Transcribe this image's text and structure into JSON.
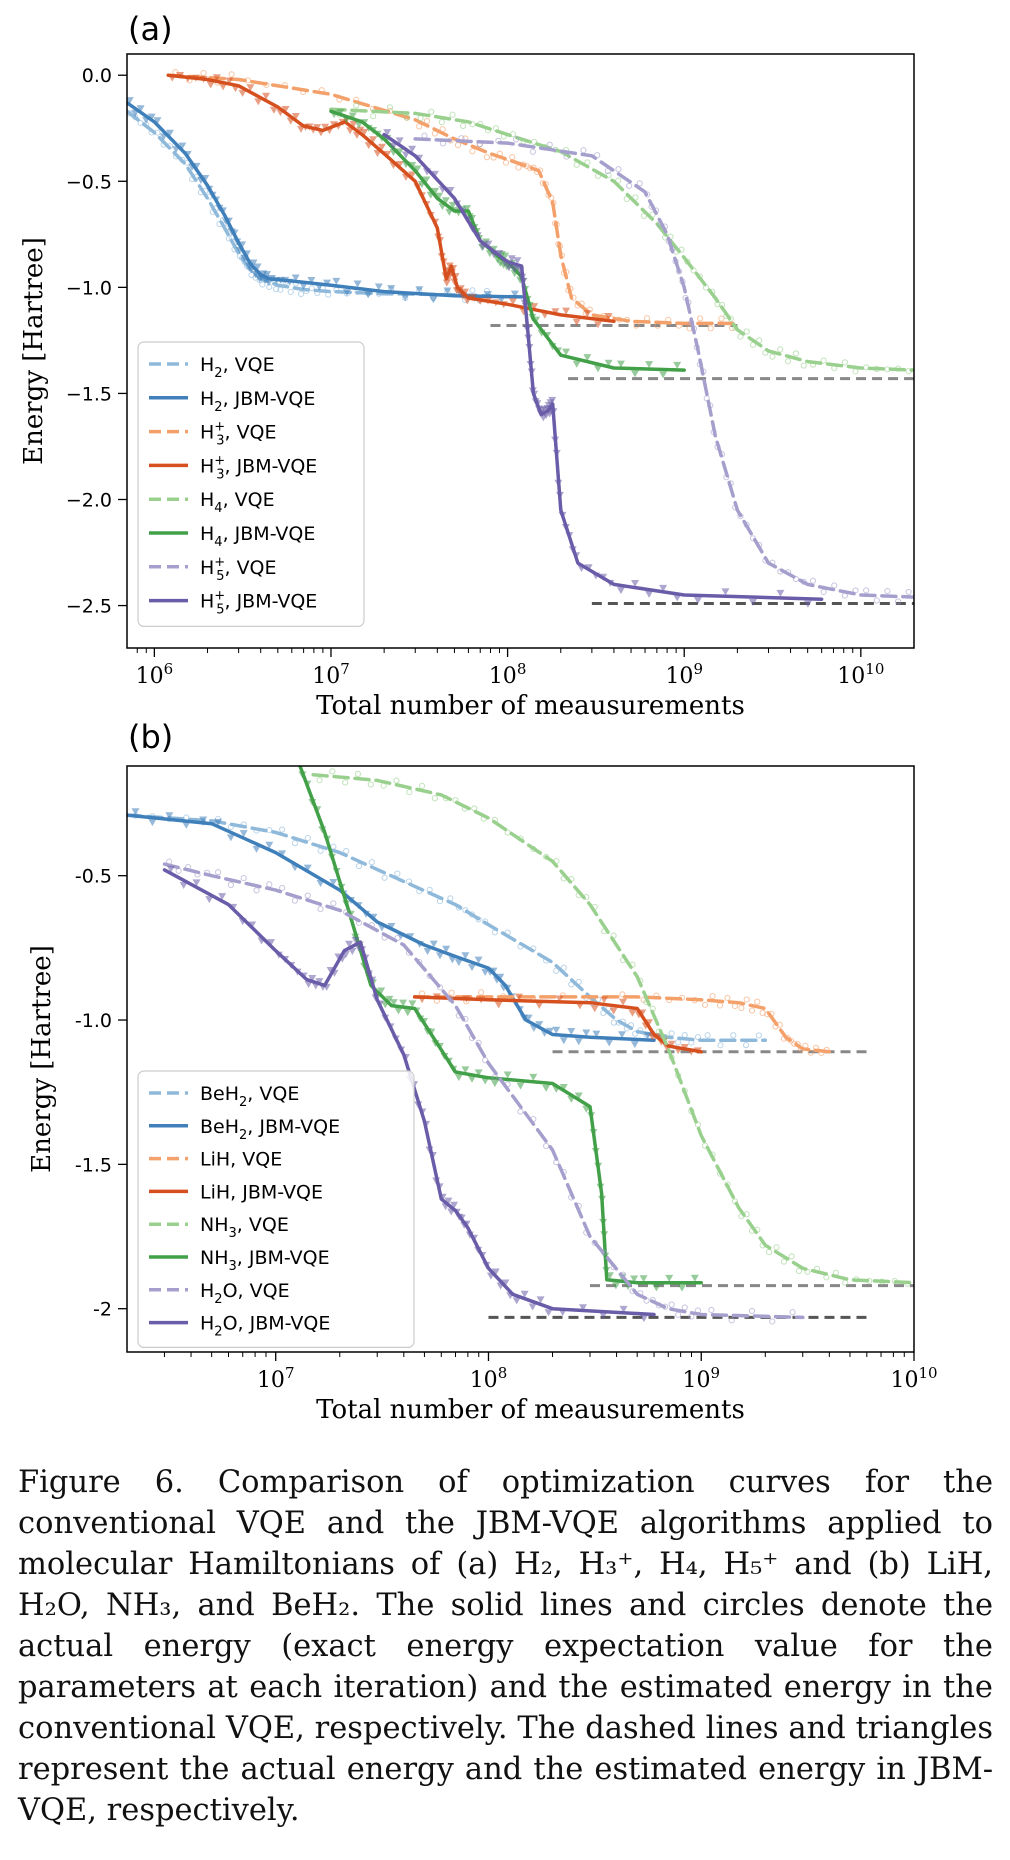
{
  "figure_label": "Figure 6.",
  "caption": "Comparison of optimization curves for the conventional VQE and the JBM-VQE algorithms applied to molecular Hamiltonians of (a) H₂, H₃⁺, H₄, H₅⁺ and (b) LiH, H₂O, NH₃, and BeH₂. The solid lines and circles denote the actual energy (exact energy expectation value for the parameters at each iteration) and the estimated energy in the conventional VQE, respectively. The dashed lines and triangles represent the actual energy and the estimated energy in JBM-VQE, respectively.",
  "colors": {
    "blue": "#3f7fba",
    "light_blue": "#8fb9da",
    "orange": "#d6501f",
    "light_orange": "#f4a06a",
    "green": "#41a048",
    "light_green": "#99d08e",
    "purple": "#6a5ca8",
    "light_purple": "#a49fcc",
    "ref_gray": "#888888",
    "ref_dark": "#555555"
  },
  "chart_data": [
    {
      "panel": "(a)",
      "type": "line",
      "xscale": "log",
      "xlabel": "Total number of meausurements",
      "ylabel": "Energy [Hartree]",
      "xlim": [
        700000,
        20000000000
      ],
      "ylim": [
        -2.7,
        0.1
      ],
      "xticks": [
        {
          "v": 1000000,
          "base": "10",
          "exp": "6"
        },
        {
          "v": 10000000,
          "base": "10",
          "exp": "7"
        },
        {
          "v": 100000000,
          "base": "10",
          "exp": "8"
        },
        {
          "v": 1000000000,
          "base": "10",
          "exp": "9"
        },
        {
          "v": 10000000000,
          "base": "10",
          "exp": "10"
        }
      ],
      "yticks": [
        {
          "v": 0,
          "label": "0.0"
        },
        {
          "v": -0.5,
          "label": "−0.5"
        },
        {
          "v": -1.0,
          "label": "−1.0"
        },
        {
          "v": -1.5,
          "label": "−1.5"
        },
        {
          "v": -2.0,
          "label": "−2.0"
        },
        {
          "v": -2.5,
          "label": "−2.5"
        }
      ],
      "legend": [
        {
          "mol": "H",
          "sub": "2",
          "sup": "",
          "method": ", VQE",
          "color": "light_blue",
          "dash": true
        },
        {
          "mol": "H",
          "sub": "2",
          "sup": "",
          "method": ", JBM-VQE",
          "color": "blue",
          "dash": false
        },
        {
          "mol": "H",
          "sub": "3",
          "sup": "+",
          "method": ", VQE",
          "color": "light_orange",
          "dash": true
        },
        {
          "mol": "H",
          "sub": "3",
          "sup": "+",
          "method": ", JBM-VQE",
          "color": "orange",
          "dash": false
        },
        {
          "mol": "H",
          "sub": "4",
          "sup": "",
          "method": ", VQE",
          "color": "light_green",
          "dash": true
        },
        {
          "mol": "H",
          "sub": "4",
          "sup": "",
          "method": ", JBM-VQE",
          "color": "green",
          "dash": false
        },
        {
          "mol": "H",
          "sub": "5",
          "sup": "+",
          "method": ", VQE",
          "color": "light_purple",
          "dash": true
        },
        {
          "mol": "H",
          "sub": "5",
          "sup": "+",
          "method": ", JBM-VQE",
          "color": "purple",
          "dash": false
        }
      ],
      "reference_lines": [
        {
          "name": "H3+ ground",
          "y": -1.18,
          "x": [
            80000000,
            2000000000
          ],
          "color": "ref_gray"
        },
        {
          "name": "H4 ground",
          "y": -1.43,
          "x": [
            220000000,
            20000000000
          ],
          "color": "ref_gray"
        },
        {
          "name": "H5+ ground",
          "y": -2.49,
          "x": [
            300000000,
            20000000000
          ],
          "color": "ref_dark"
        }
      ],
      "series": [
        {
          "name": "H2, VQE",
          "color": "light_blue",
          "dash": true,
          "marker": "o",
          "x": [
            700000,
            1000000,
            1500000,
            2000000,
            2500000,
            3000000,
            3500000,
            4000000,
            5000000,
            7000000,
            10000000,
            20000000,
            50000000,
            80000000
          ],
          "y": [
            -0.17,
            -0.27,
            -0.42,
            -0.58,
            -0.72,
            -0.84,
            -0.92,
            -0.96,
            -0.99,
            -1.01,
            -1.02,
            -1.03,
            -1.035,
            -1.04
          ]
        },
        {
          "name": "H2, JBM-VQE",
          "color": "blue",
          "dash": false,
          "marker": "v",
          "x": [
            700000,
            1000000,
            1500000,
            2000000,
            2500000,
            3000000,
            3500000,
            4000000,
            4500000,
            6000000,
            10000000,
            20000000,
            50000000,
            120000000
          ],
          "y": [
            -0.13,
            -0.22,
            -0.37,
            -0.52,
            -0.66,
            -0.79,
            -0.89,
            -0.94,
            -0.96,
            -0.97,
            -0.99,
            -1.02,
            -1.04,
            -1.045
          ]
        },
        {
          "name": "H3+, VQE",
          "color": "light_orange",
          "dash": true,
          "marker": "o",
          "x": [
            1200000,
            3000000,
            10000000,
            30000000,
            50000000,
            80000000,
            120000000,
            150000000,
            180000000,
            200000000,
            230000000,
            300000000,
            500000000,
            1000000000,
            2000000000
          ],
          "y": [
            0,
            -0.02,
            -0.09,
            -0.21,
            -0.3,
            -0.37,
            -0.42,
            -0.45,
            -0.6,
            -0.85,
            -1.05,
            -1.13,
            -1.16,
            -1.17,
            -1.17
          ]
        },
        {
          "name": "H3+, JBM-VQE",
          "color": "orange",
          "dash": false,
          "marker": "v",
          "x": [
            1200000,
            2000000,
            3000000,
            5000000,
            7000000,
            9000000,
            12000000,
            15000000,
            20000000,
            30000000,
            40000000,
            45000000,
            48000000,
            52000000,
            60000000,
            100000000,
            200000000,
            400000000
          ],
          "y": [
            0,
            -0.02,
            -0.05,
            -0.15,
            -0.24,
            -0.26,
            -0.22,
            -0.28,
            -0.37,
            -0.5,
            -0.72,
            -0.96,
            -0.9,
            -1.0,
            -1.05,
            -1.08,
            -1.13,
            -1.16
          ]
        },
        {
          "name": "H4, VQE",
          "color": "light_green",
          "dash": true,
          "marker": "o",
          "x": [
            10000000,
            30000000,
            60000000,
            100000000,
            200000000,
            400000000,
            700000000,
            1000000000,
            1500000000,
            2000000000,
            3000000000,
            5000000000,
            10000000000,
            20000000000
          ],
          "y": [
            -0.16,
            -0.18,
            -0.22,
            -0.28,
            -0.36,
            -0.5,
            -0.7,
            -0.86,
            -1.05,
            -1.2,
            -1.3,
            -1.35,
            -1.38,
            -1.39
          ]
        },
        {
          "name": "H4, JBM-VQE",
          "color": "green",
          "dash": false,
          "marker": "v",
          "x": [
            10000000,
            15000000,
            20000000,
            30000000,
            40000000,
            50000000,
            60000000,
            70000000,
            90000000,
            100000000,
            120000000,
            140000000,
            200000000,
            400000000,
            1000000000
          ],
          "y": [
            -0.17,
            -0.22,
            -0.3,
            -0.45,
            -0.58,
            -0.64,
            -0.64,
            -0.78,
            -0.86,
            -0.88,
            -0.95,
            -1.15,
            -1.32,
            -1.38,
            -1.39
          ]
        },
        {
          "name": "H5+, VQE",
          "color": "light_purple",
          "dash": true,
          "marker": "o",
          "x": [
            30000000,
            100000000,
            300000000,
            600000000,
            800000000,
            1000000000,
            1200000000,
            1500000000,
            2000000000,
            3000000000,
            5000000000,
            10000000000,
            20000000000
          ],
          "y": [
            -0.3,
            -0.32,
            -0.38,
            -0.55,
            -0.75,
            -1.0,
            -1.3,
            -1.7,
            -2.05,
            -2.3,
            -2.4,
            -2.45,
            -2.46
          ]
        },
        {
          "name": "H5+, JBM-VQE",
          "color": "purple",
          "dash": false,
          "marker": "v",
          "x": [
            20000000,
            30000000,
            50000000,
            70000000,
            100000000,
            120000000,
            130000000,
            140000000,
            155000000,
            170000000,
            180000000,
            200000000,
            250000000,
            400000000,
            1000000000,
            6000000000
          ],
          "y": [
            -0.28,
            -0.38,
            -0.58,
            -0.78,
            -0.88,
            -0.9,
            -1.2,
            -1.5,
            -1.6,
            -1.58,
            -1.55,
            -2.05,
            -2.3,
            -2.4,
            -2.45,
            -2.47
          ]
        }
      ]
    },
    {
      "panel": "(b)",
      "type": "line",
      "xscale": "log",
      "xlabel": "Total number of meausurements",
      "ylabel": "Energy [Hartree]",
      "xlim": [
        2000000,
        10000000000
      ],
      "ylim": [
        -2.15,
        -0.12
      ],
      "xticks": [
        {
          "v": 10000000,
          "base": "10",
          "exp": "7"
        },
        {
          "v": 100000000,
          "base": "10",
          "exp": "8"
        },
        {
          "v": 1000000000,
          "base": "10",
          "exp": "9"
        },
        {
          "v": 10000000000,
          "base": "10",
          "exp": "10"
        }
      ],
      "yticks": [
        {
          "v": -0.5,
          "label": "-0.5"
        },
        {
          "v": -1.0,
          "label": "-1.0"
        },
        {
          "v": -1.5,
          "label": "-1.5"
        },
        {
          "v": -2.0,
          "label": "-2"
        }
      ],
      "legend": [
        {
          "mol": "BeH",
          "sub": "2",
          "sup": "",
          "method": ", VQE",
          "color": "light_blue",
          "dash": true
        },
        {
          "mol": "BeH",
          "sub": "2",
          "sup": "",
          "method": ", JBM-VQE",
          "color": "blue",
          "dash": false
        },
        {
          "mol": "LiH",
          "sub": "",
          "sup": "",
          "method": ", VQE",
          "color": "light_orange",
          "dash": true
        },
        {
          "mol": "LiH",
          "sub": "",
          "sup": "",
          "method": ", JBM-VQE",
          "color": "orange",
          "dash": false
        },
        {
          "mol": "NH",
          "sub": "3",
          "sup": "",
          "method": ", VQE",
          "color": "light_green",
          "dash": true
        },
        {
          "mol": "NH",
          "sub": "3",
          "sup": "",
          "method": ", JBM-VQE",
          "color": "green",
          "dash": false
        },
        {
          "mol": "H",
          "sub": "2",
          "sup": "",
          "method": "O, VQE",
          "color": "light_purple",
          "dash": true
        },
        {
          "mol": "H",
          "sub": "2",
          "sup": "",
          "method": "O, JBM-VQE",
          "color": "purple",
          "dash": false
        }
      ],
      "reference_lines": [
        {
          "name": "BeH2/LiH ground",
          "y": -1.11,
          "x": [
            200000000,
            6000000000
          ],
          "color": "ref_gray"
        },
        {
          "name": "NH3 ground",
          "y": -1.92,
          "x": [
            300000000,
            10000000000
          ],
          "color": "ref_gray"
        },
        {
          "name": "H2O ground",
          "y": -2.03,
          "x": [
            100000000,
            6000000000
          ],
          "color": "ref_dark"
        }
      ],
      "series": [
        {
          "name": "BeH2, VQE",
          "color": "light_blue",
          "dash": true,
          "marker": "o",
          "x": [
            2000000,
            5000000,
            10000000,
            20000000,
            40000000,
            70000000,
            100000000,
            200000000,
            300000000,
            400000000,
            500000000,
            700000000,
            1000000000,
            2000000000
          ],
          "y": [
            -0.29,
            -0.31,
            -0.35,
            -0.42,
            -0.52,
            -0.6,
            -0.67,
            -0.8,
            -0.92,
            -1.0,
            -1.04,
            -1.06,
            -1.07,
            -1.07
          ]
        },
        {
          "name": "BeH2, JBM-VQE",
          "color": "blue",
          "dash": false,
          "marker": "v",
          "x": [
            2000000,
            5000000,
            10000000,
            20000000,
            30000000,
            50000000,
            70000000,
            100000000,
            120000000,
            150000000,
            200000000,
            300000000,
            600000000
          ],
          "y": [
            -0.29,
            -0.32,
            -0.42,
            -0.55,
            -0.66,
            -0.74,
            -0.78,
            -0.82,
            -0.88,
            -1.0,
            -1.05,
            -1.06,
            -1.07
          ]
        },
        {
          "name": "LiH, VQE",
          "color": "light_orange",
          "dash": true,
          "marker": "o",
          "x": [
            45000000,
            100000000,
            500000000,
            1000000000,
            1500000000,
            2000000000,
            2500000000,
            3000000000,
            4000000000
          ],
          "y": [
            -0.92,
            -0.92,
            -0.92,
            -0.93,
            -0.94,
            -0.96,
            -1.06,
            -1.1,
            -1.11
          ]
        },
        {
          "name": "LiH, JBM-VQE",
          "color": "orange",
          "dash": false,
          "marker": "v",
          "x": [
            45000000,
            100000000,
            300000000,
            500000000,
            600000000,
            700000000,
            1000000000
          ],
          "y": [
            -0.92,
            -0.93,
            -0.94,
            -0.96,
            -1.05,
            -1.09,
            -1.11
          ]
        },
        {
          "name": "NH3, VQE",
          "color": "light_green",
          "dash": true,
          "marker": "o",
          "x": [
            15000000,
            30000000,
            60000000,
            100000000,
            200000000,
            300000000,
            500000000,
            700000000,
            1000000000,
            1500000000,
            2000000000,
            3000000000,
            5000000000,
            10000000000
          ],
          "y": [
            -0.15,
            -0.17,
            -0.22,
            -0.3,
            -0.45,
            -0.6,
            -0.85,
            -1.1,
            -1.4,
            -1.65,
            -1.78,
            -1.86,
            -1.9,
            -1.91
          ]
        },
        {
          "name": "NH3, JBM-VQE",
          "color": "green",
          "dash": false,
          "marker": "v",
          "x": [
            13000000,
            17000000,
            22000000,
            28000000,
            35000000,
            45000000,
            55000000,
            70000000,
            100000000,
            200000000,
            300000000,
            340000000,
            360000000,
            500000000,
            1000000000
          ],
          "y": [
            -0.12,
            -0.35,
            -0.62,
            -0.88,
            -0.95,
            -0.96,
            -1.06,
            -1.18,
            -1.2,
            -1.22,
            -1.3,
            -1.6,
            -1.9,
            -1.91,
            -1.91
          ]
        },
        {
          "name": "H2O, VQE",
          "color": "light_purple",
          "dash": true,
          "marker": "o",
          "x": [
            3000000,
            5000000,
            10000000,
            20000000,
            40000000,
            70000000,
            100000000,
            200000000,
            300000000,
            500000000,
            700000000,
            1000000000,
            3000000000
          ],
          "y": [
            -0.46,
            -0.5,
            -0.55,
            -0.62,
            -0.74,
            -0.95,
            -1.15,
            -1.45,
            -1.75,
            -1.95,
            -2.0,
            -2.02,
            -2.03
          ]
        },
        {
          "name": "H2O, JBM-VQE",
          "color": "purple",
          "dash": false,
          "marker": "v",
          "x": [
            3000000,
            6000000,
            10000000,
            14000000,
            17000000,
            21000000,
            25000000,
            30000000,
            40000000,
            50000000,
            60000000,
            70000000,
            80000000,
            100000000,
            130000000,
            200000000,
            600000000
          ],
          "y": [
            -0.48,
            -0.6,
            -0.76,
            -0.86,
            -0.88,
            -0.76,
            -0.73,
            -0.93,
            -1.12,
            -1.35,
            -1.62,
            -1.66,
            -1.72,
            -1.86,
            -1.95,
            -2.0,
            -2.02
          ]
        }
      ]
    }
  ]
}
